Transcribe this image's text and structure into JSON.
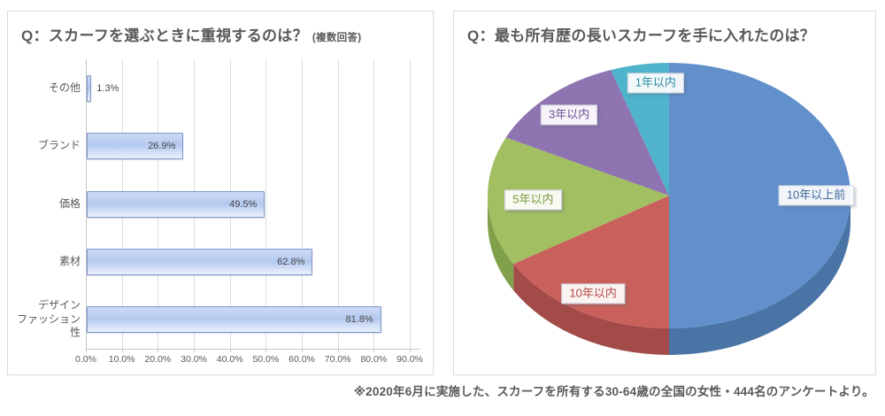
{
  "footnote": "※2020年6月に実施した、スカーフを所有する30-64歳の全国の女性・444名のアンケートより。",
  "colors": {
    "panel_border": "#d9d9d9",
    "title_text": "#595959",
    "gridline": "#dcdcdc",
    "axis_line": "#c6c6c6",
    "bar_fill_light": "#ccdaf5",
    "bar_fill_mid": "#b4c9ef",
    "bar_border": "#7e96ca",
    "value_label_text": "#474747"
  },
  "chart_data": [
    {
      "type": "bar",
      "orientation": "horizontal",
      "title": "Q：スカーフを選ぶときに重視するのは？",
      "title_note": "(複数回答)",
      "categories": [
        "その他",
        "ブランド",
        "価格",
        "素材",
        "デザイン\nファッション性"
      ],
      "values": [
        1.3,
        26.9,
        49.5,
        62.8,
        81.8
      ],
      "value_labels": [
        "1.3%",
        "26.9%",
        "49.5%",
        "62.8%",
        "81.8%"
      ],
      "xlim": [
        0,
        90
      ],
      "x_ticks": [
        "0.0%",
        "10.0%",
        "20.0%",
        "30.0%",
        "40.0%",
        "50.0%",
        "60.0%",
        "70.0%",
        "80.0%",
        "90.0%"
      ],
      "grid": true,
      "legend": "none"
    },
    {
      "type": "pie",
      "style": "3d",
      "title": "Q：最も所有歴の長いスカーフを手に入れたのは？",
      "labels": [
        "10年以上前",
        "10年以内",
        "5年以内",
        "3年以内",
        "1年以内"
      ],
      "values": [
        50.0,
        16.4,
        15.8,
        12.6,
        5.2
      ],
      "values_note": "percentages estimated from slice angles; no numeric labels shown in chart",
      "start_angle_deg": 0,
      "direction": "clockwise",
      "colors": [
        "#6190cb",
        "#c9605c",
        "#a2bf62",
        "#8e74b0",
        "#4fb3cb"
      ],
      "side_colors": [
        "#4a74a6",
        "#a34b48",
        "#81a04b",
        "#70568f",
        "#3a8fa5"
      ],
      "label_text_colors": [
        "#3f659b",
        "#b04844",
        "#7b9a3e",
        "#6a5292",
        "#2e8aa3"
      ],
      "legend": "none"
    }
  ]
}
